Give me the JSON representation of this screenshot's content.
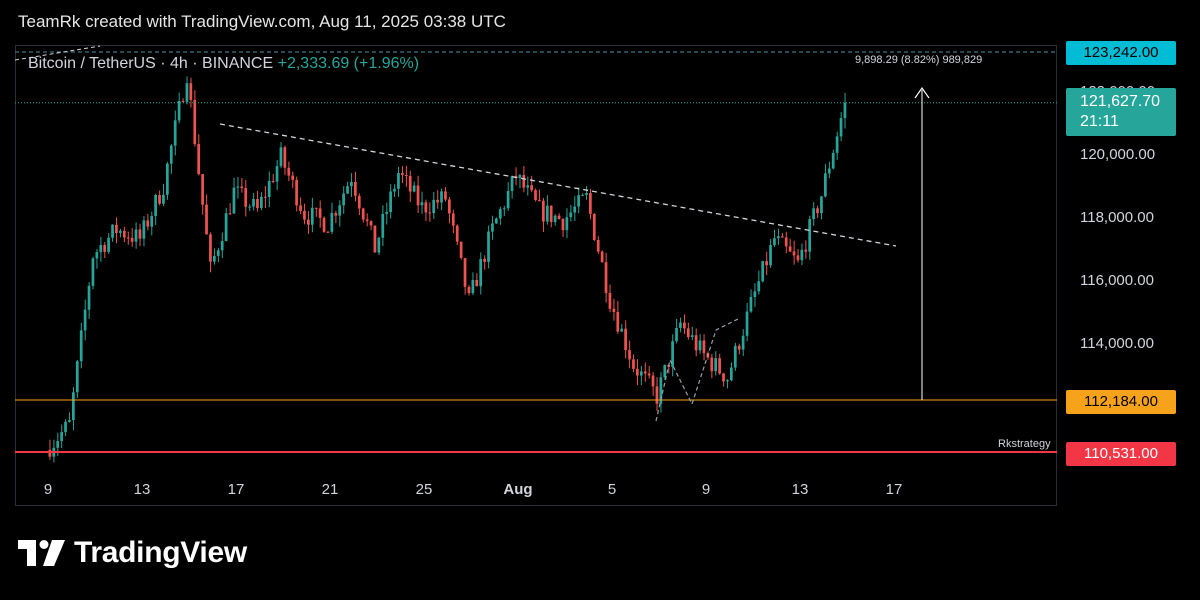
{
  "header": {
    "attribution": "TeamRk created with TradingView.com, Aug 11, 2025 03:38 UTC"
  },
  "legend": {
    "symbol": "Bitcoin / TetherUS",
    "interval": "4h",
    "exchange": "BINANCE",
    "change": "+2,333.69 (+1.96%)",
    "separator": "·"
  },
  "measure_label": "9,898.29 (8.82%) 989,829",
  "watermark_label": "Rkstrategy",
  "price_tags": {
    "top": {
      "value": "123,242.00",
      "bg": "#00bcd4",
      "fg": "#000000"
    },
    "current": {
      "value": "121,627.70",
      "countdown": "21:11",
      "bg": "#26a69a",
      "fg": "#ffffff"
    },
    "support": {
      "value": "112,184.00",
      "bg": "#f7a21b",
      "fg": "#000000"
    },
    "low": {
      "value": "110,531.00",
      "bg": "#f23645",
      "fg": "#ffffff"
    }
  },
  "colors": {
    "up": "#26a69a",
    "down": "#ef5350",
    "grid": "#1c2030",
    "axis_text": "#d1d4dc"
  },
  "logo": {
    "text": "TradingView",
    "icon": "tradingview-logo-icon"
  },
  "chart_data": {
    "type": "candlestick",
    "title": "Bitcoin / TetherUS · 4h · BINANCE",
    "xlabel": "",
    "ylabel": "",
    "ylim": [
      109800,
      123800
    ],
    "x_ticks": [
      "9",
      "13",
      "17",
      "21",
      "25",
      "Aug",
      "5",
      "9",
      "13",
      "17"
    ],
    "y_ticks": [
      "114,000.00",
      "116,000.00",
      "118,000.00",
      "120,000.00",
      "122,000.00"
    ],
    "grid": false,
    "candles_close_approx": [
      {
        "x": "Jul 9",
        "o": 110600,
        "c": 111400
      },
      {
        "x": "Jul 10",
        "o": 111400,
        "c": 116800
      },
      {
        "x": "Jul 11",
        "o": 116800,
        "c": 117600
      },
      {
        "x": "Jul 12",
        "o": 117600,
        "c": 117300
      },
      {
        "x": "Jul 13",
        "o": 117300,
        "c": 119000
      },
      {
        "x": "Jul 14",
        "o": 119000,
        "c": 122600
      },
      {
        "x": "Jul 15",
        "o": 122600,
        "c": 116300
      },
      {
        "x": "Jul 16",
        "o": 116300,
        "c": 118800
      },
      {
        "x": "Jul 17",
        "o": 118800,
        "c": 118200
      },
      {
        "x": "Jul 18",
        "o": 118200,
        "c": 119900
      },
      {
        "x": "Jul 19",
        "o": 119900,
        "c": 118100
      },
      {
        "x": "Jul 20",
        "o": 118100,
        "c": 117800
      },
      {
        "x": "Jul 21",
        "o": 117800,
        "c": 119300
      },
      {
        "x": "Jul 22",
        "o": 119300,
        "c": 117000
      },
      {
        "x": "Jul 23",
        "o": 117000,
        "c": 119400
      },
      {
        "x": "Jul 24",
        "o": 119400,
        "c": 118300
      },
      {
        "x": "Jul 25",
        "o": 118300,
        "c": 118600
      },
      {
        "x": "Jul 26",
        "o": 118600,
        "c": 115300
      },
      {
        "x": "Jul 27",
        "o": 115300,
        "c": 117600
      },
      {
        "x": "Jul 28",
        "o": 117600,
        "c": 119300
      },
      {
        "x": "Jul 29",
        "o": 119300,
        "c": 118200
      },
      {
        "x": "Jul 30",
        "o": 118200,
        "c": 117900
      },
      {
        "x": "Jul 31",
        "o": 117900,
        "c": 118600
      },
      {
        "x": "Aug 1",
        "o": 118600,
        "c": 115400
      },
      {
        "x": "Aug 2",
        "o": 115400,
        "c": 113300
      },
      {
        "x": "Aug 3",
        "o": 113300,
        "c": 112300
      },
      {
        "x": "Aug 4",
        "o": 112300,
        "c": 114600
      },
      {
        "x": "Aug 5",
        "o": 114600,
        "c": 113600
      },
      {
        "x": "Aug 6",
        "o": 113600,
        "c": 112900
      },
      {
        "x": "Aug 7",
        "o": 112900,
        "c": 115200
      },
      {
        "x": "Aug 8",
        "o": 115200,
        "c": 117300
      },
      {
        "x": "Aug 9",
        "o": 117300,
        "c": 116500
      },
      {
        "x": "Aug 10",
        "o": 116500,
        "c": 118700
      },
      {
        "x": "Aug 11",
        "o": 118700,
        "c": 121628
      }
    ]
  }
}
